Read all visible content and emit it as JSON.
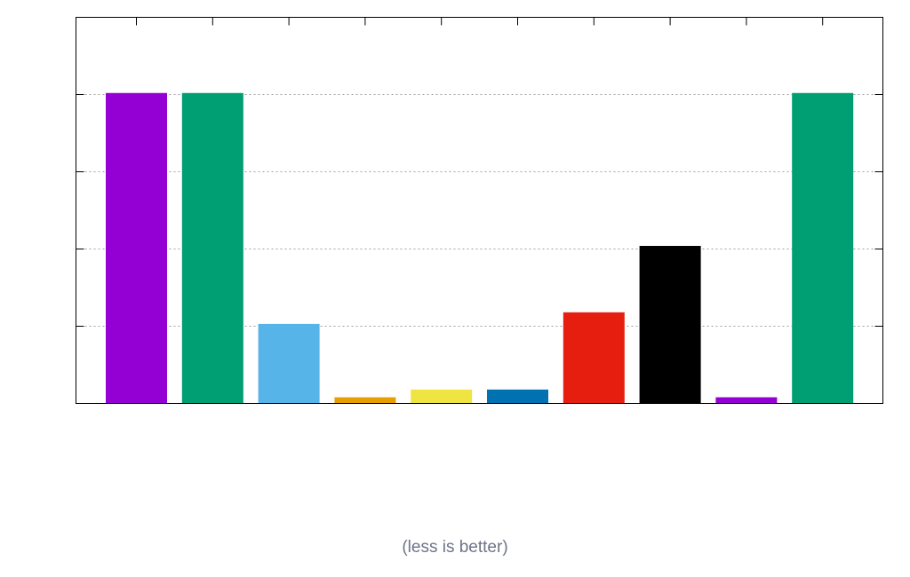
{
  "chart_data": {
    "type": "bar",
    "title": "",
    "xlabel": "(less is better)",
    "ylabel": "",
    "ylim": [
      0,
      5
    ],
    "yticks": [
      1,
      2,
      3,
      4
    ],
    "grid": "horizontal-dotted",
    "series": [
      {
        "values": [
          4.02,
          4.02,
          1.03,
          0.08,
          0.18,
          0.18,
          1.18,
          2.04,
          0.08,
          4.02
        ],
        "colors": [
          "#9400d3",
          "#009e73",
          "#56b4e9",
          "#e69f00",
          "#f0e442",
          "#0072b2",
          "#e51e10",
          "#000000",
          "#9400d3",
          "#009e73"
        ]
      }
    ]
  }
}
